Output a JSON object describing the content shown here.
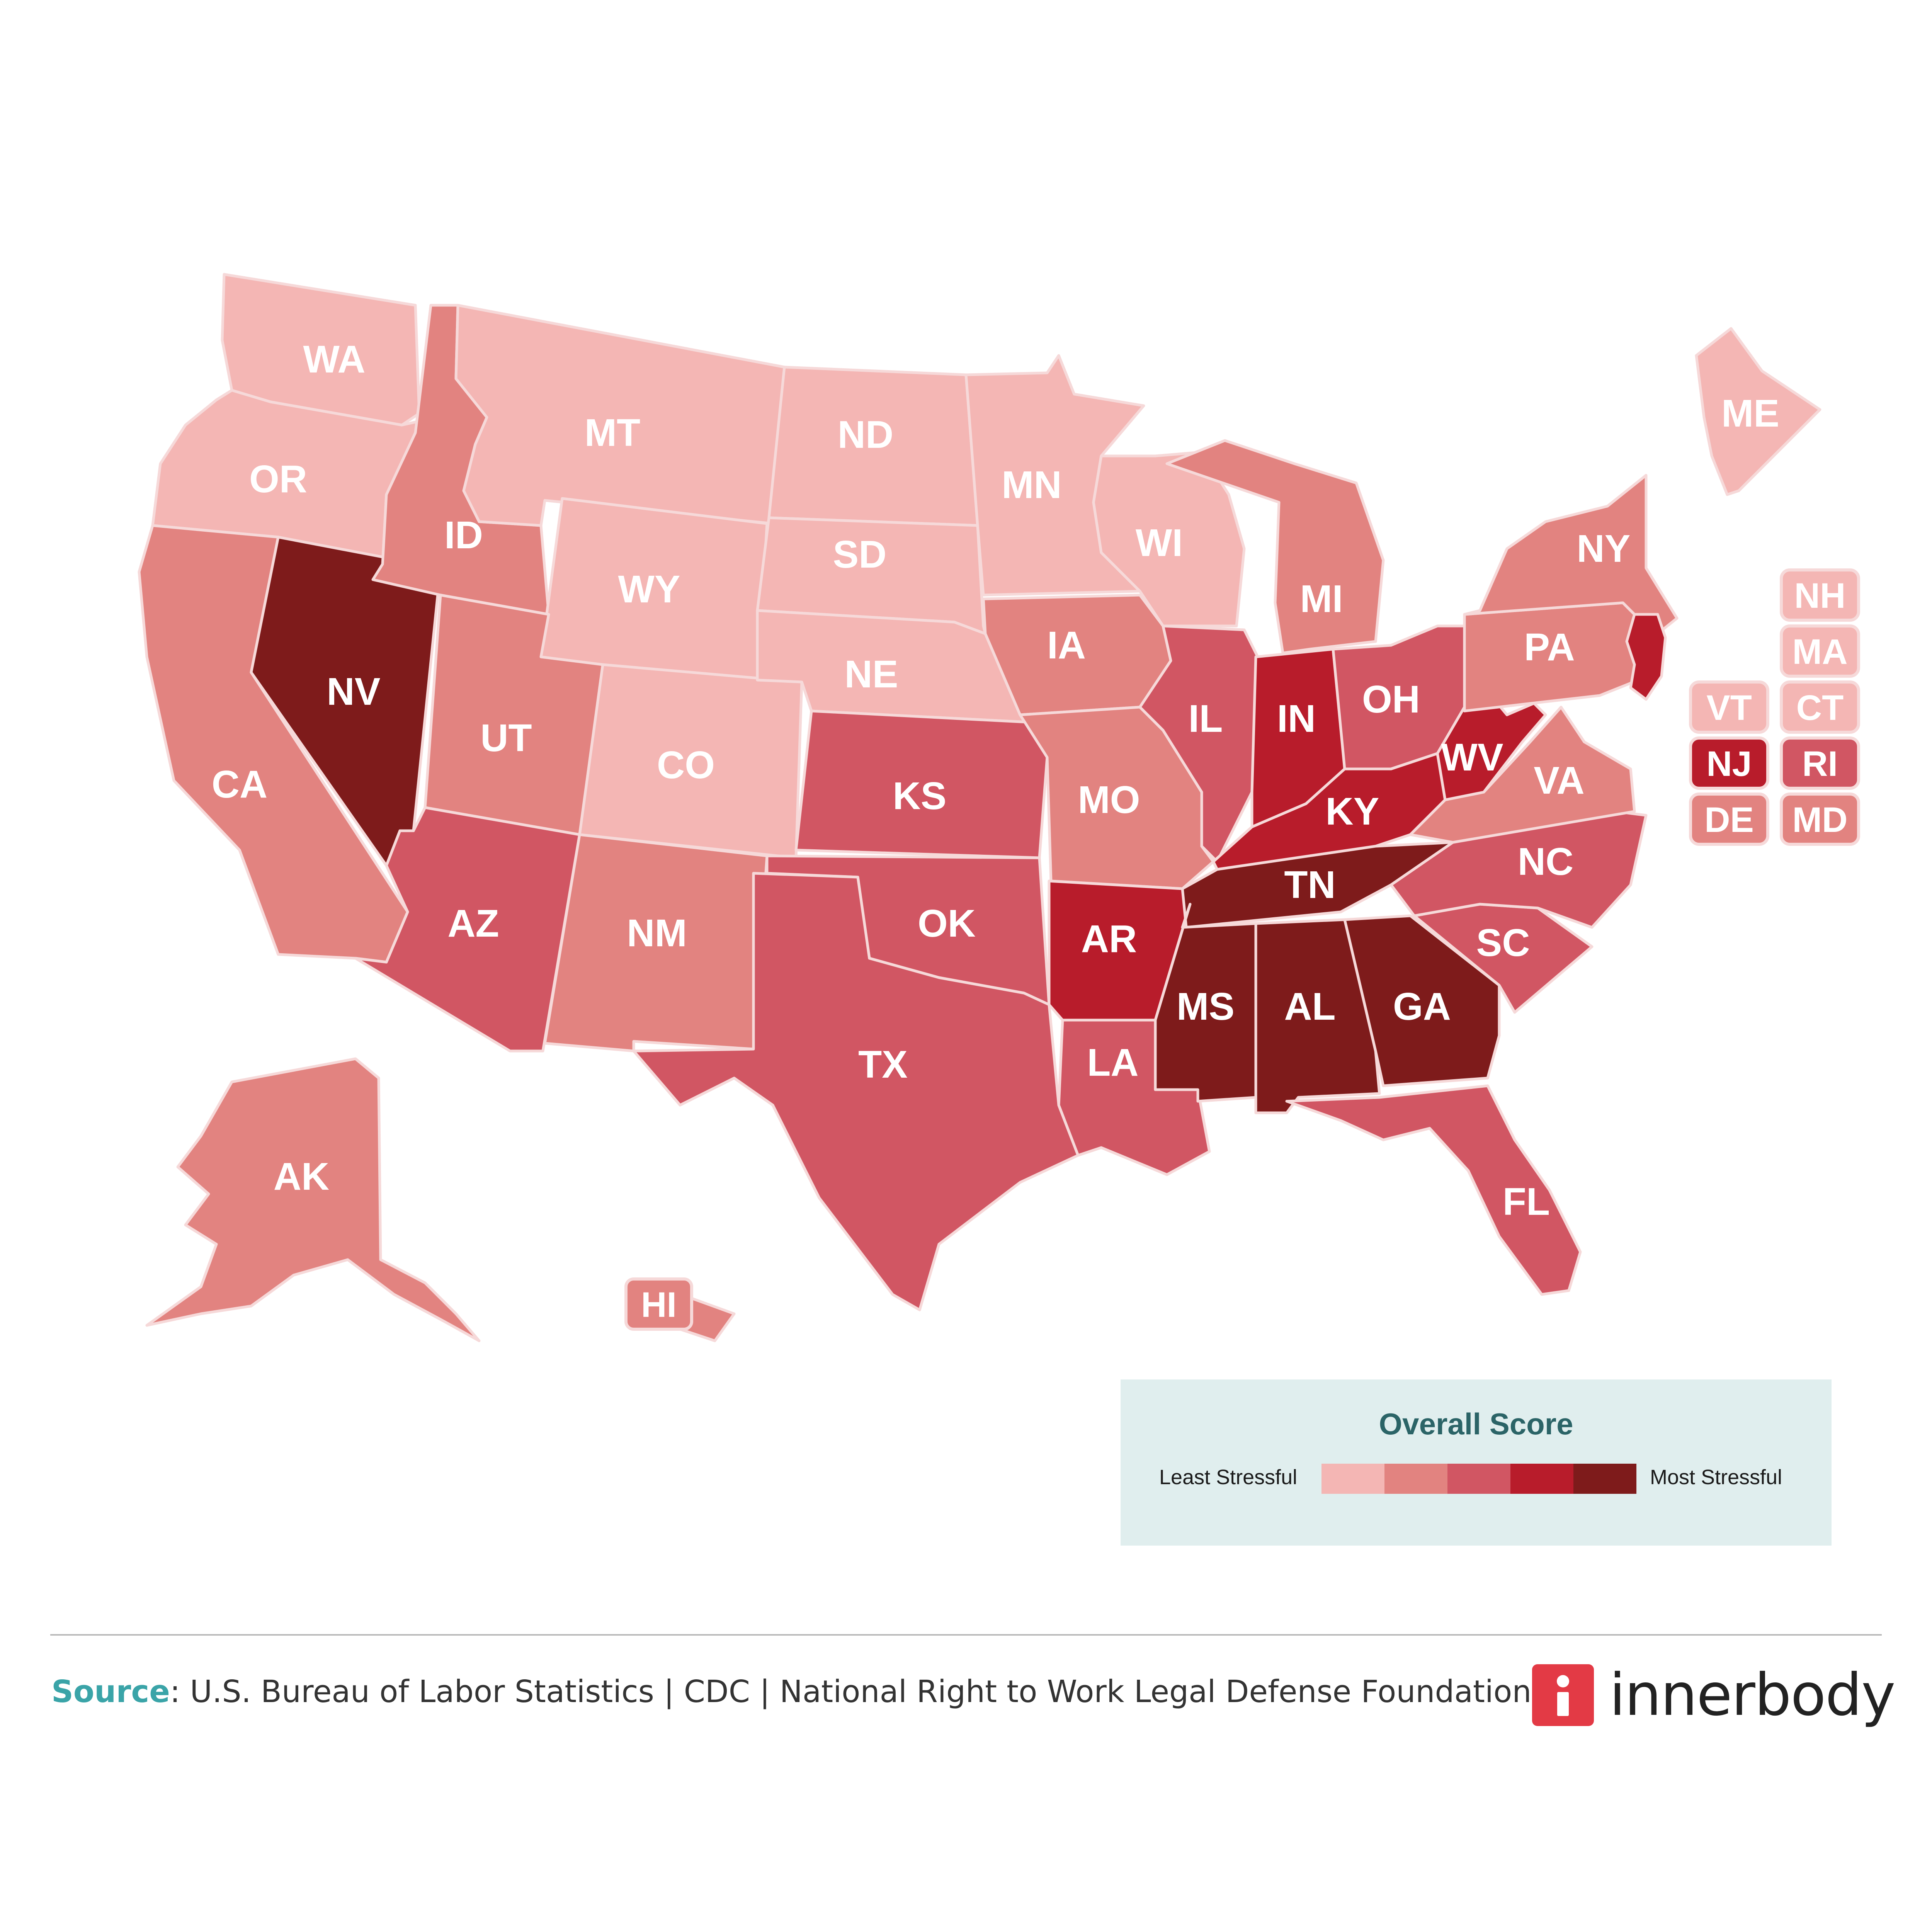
{
  "map": {
    "scale_colors": [
      "#f4b6b4",
      "#e28380",
      "#d15663",
      "#b81c2b",
      "#7e1b1b"
    ],
    "legend": {
      "title": "Overall Score",
      "least_label": "Least Stressful",
      "most_label": "Most Stressful"
    },
    "states": [
      {
        "code": "WA",
        "level": 1
      },
      {
        "code": "OR",
        "level": 1
      },
      {
        "code": "CA",
        "level": 2
      },
      {
        "code": "NV",
        "level": 5
      },
      {
        "code": "ID",
        "level": 2
      },
      {
        "code": "MT",
        "level": 1
      },
      {
        "code": "WY",
        "level": 1
      },
      {
        "code": "UT",
        "level": 2
      },
      {
        "code": "AZ",
        "level": 3
      },
      {
        "code": "CO",
        "level": 1
      },
      {
        "code": "NM",
        "level": 2
      },
      {
        "code": "ND",
        "level": 1
      },
      {
        "code": "SD",
        "level": 1
      },
      {
        "code": "NE",
        "level": 1
      },
      {
        "code": "KS",
        "level": 3
      },
      {
        "code": "OK",
        "level": 3
      },
      {
        "code": "TX",
        "level": 3
      },
      {
        "code": "MN",
        "level": 1
      },
      {
        "code": "IA",
        "level": 2
      },
      {
        "code": "MO",
        "level": 2
      },
      {
        "code": "AR",
        "level": 4
      },
      {
        "code": "LA",
        "level": 3
      },
      {
        "code": "WI",
        "level": 1
      },
      {
        "code": "IL",
        "level": 3
      },
      {
        "code": "MI",
        "level": 2
      },
      {
        "code": "IN",
        "level": 4
      },
      {
        "code": "OH",
        "level": 3
      },
      {
        "code": "KY",
        "level": 4
      },
      {
        "code": "TN",
        "level": 5
      },
      {
        "code": "MS",
        "level": 5
      },
      {
        "code": "AL",
        "level": 5
      },
      {
        "code": "GA",
        "level": 5
      },
      {
        "code": "FL",
        "level": 3
      },
      {
        "code": "SC",
        "level": 3
      },
      {
        "code": "NC",
        "level": 3
      },
      {
        "code": "VA",
        "level": 2
      },
      {
        "code": "WV",
        "level": 4
      },
      {
        "code": "PA",
        "level": 2
      },
      {
        "code": "NY",
        "level": 2
      },
      {
        "code": "ME",
        "level": 1
      },
      {
        "code": "AK",
        "level": 2
      },
      {
        "code": "HI",
        "level": 2
      }
    ],
    "small_states": [
      {
        "code": "NH",
        "level": 1
      },
      {
        "code": "MA",
        "level": 1
      },
      {
        "code": "VT",
        "level": 1
      },
      {
        "code": "CT",
        "level": 1
      },
      {
        "code": "NJ",
        "level": 4
      },
      {
        "code": "RI",
        "level": 3
      },
      {
        "code": "DE",
        "level": 2
      },
      {
        "code": "MD",
        "level": 2
      }
    ]
  },
  "footer": {
    "source_label": "Source",
    "source_text": ": U.S. Bureau of Labor Statistics | CDC | National Right to Work Legal Defense Foundation",
    "brand": "innerbody"
  }
}
